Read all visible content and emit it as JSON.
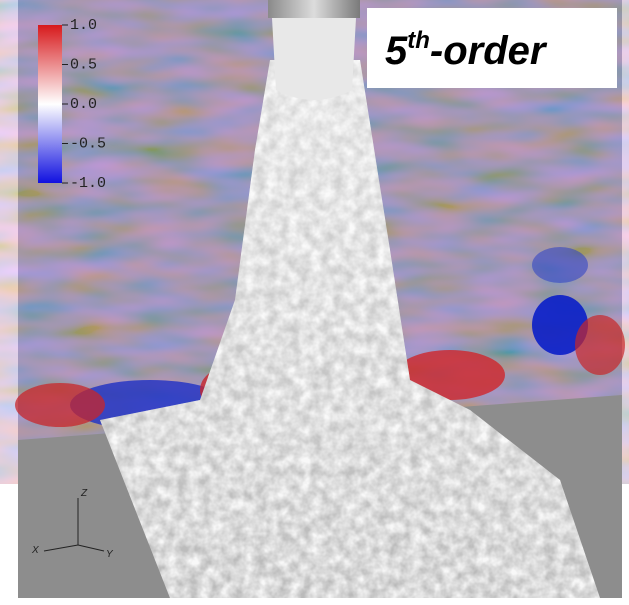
{
  "colorbar": {
    "range": [
      -1,
      1
    ],
    "ticks": [
      {
        "value": 1,
        "label": "1.0"
      },
      {
        "value": 0.5,
        "label": "0.5"
      },
      {
        "value": 0,
        "label": "0.0"
      },
      {
        "value": -0.5,
        "label": "-0.5"
      },
      {
        "value": -1,
        "label": "-1.0"
      }
    ]
  },
  "label": {
    "base": "5",
    "sup": "th",
    "rest": "-order"
  },
  "axes": {
    "z": "Z",
    "x": "X",
    "y": "Y"
  }
}
